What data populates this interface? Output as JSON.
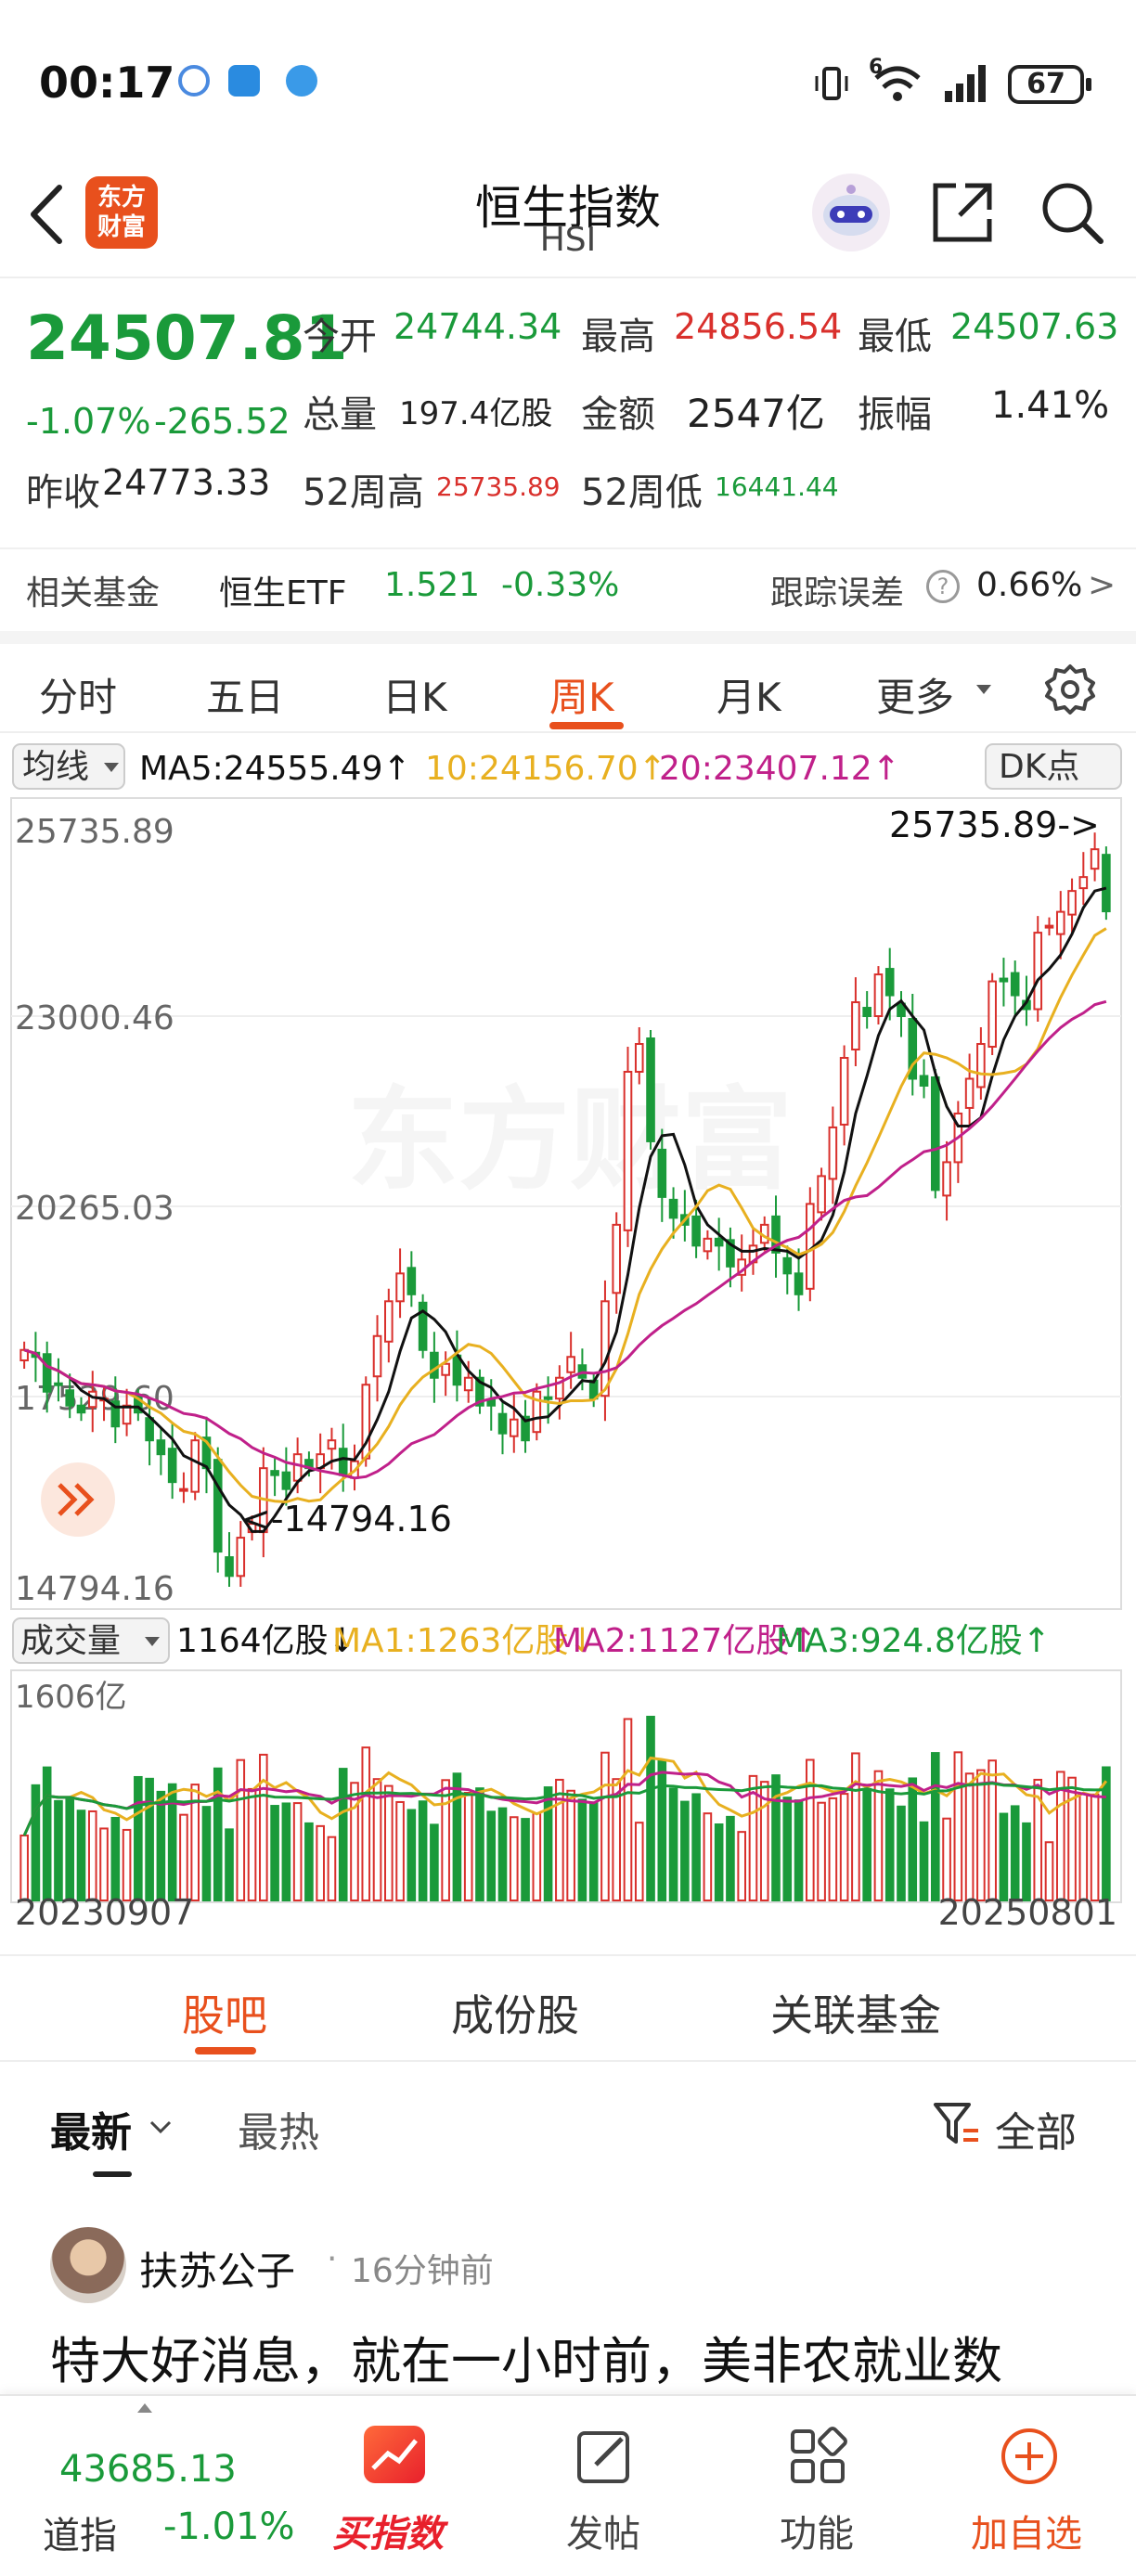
{
  "status_bar": {
    "time": "00:17",
    "battery": "67",
    "network": "6"
  },
  "header": {
    "title": "恒生指数",
    "subtitle": "HSI",
    "logo_line1": "东方",
    "logo_line2": "财富",
    "icons": [
      "back-icon",
      "assistant-icon",
      "share-icon",
      "search-icon"
    ]
  },
  "quote": {
    "price": "24507.81",
    "change_pct": "-1.07%",
    "change": "-265.52",
    "open_label": "今开",
    "open": "24744.34",
    "high_label": "最高",
    "high": "24856.54",
    "low_label": "最低",
    "low": "24507.63",
    "volume_label": "总量",
    "volume": "197.4亿股",
    "amount_label": "金额",
    "amount": "2547亿",
    "amplitude_label": "振幅",
    "amplitude": "1.41%",
    "prev_close_label": "昨收",
    "prev_close": "24773.33",
    "wk52_high_label": "52周高",
    "wk52_high": "25735.89",
    "wk52_low_label": "52周低",
    "wk52_low": "16441.44"
  },
  "fund": {
    "label": "相关基金",
    "name": "恒生ETF",
    "price": "1.521",
    "change": "-0.33%",
    "tracking_label": "跟踪误差",
    "tracking": "0.66%",
    "chevron": ">"
  },
  "tabs": [
    "分时",
    "五日",
    "日K",
    "周K",
    "月K",
    "更多"
  ],
  "active_tab": 3,
  "chart_header": {
    "selector": "均线",
    "ma5": "MA5:24555.49↑",
    "ma10": "10:24156.70↑",
    "ma20": "20:23407.12↑",
    "dk": "DK点"
  },
  "volume_header": {
    "selector": "成交量",
    "vol": "1164亿股↓",
    "ma1": "MA1:1263亿股↓",
    "ma2": "MA2:1127亿股↑",
    "ma3": "MA3:924.8亿股↑",
    "max_label": "1606亿"
  },
  "colors": {
    "up": "#d9302c",
    "down": "#1a9a3a",
    "ma5": "#111111",
    "ma10": "#e8b020",
    "ma20": "#c0208a",
    "accent": "#e8501d"
  },
  "chart_data": {
    "type": "candlestick",
    "period": "weekly",
    "x_start": "20230907",
    "x_end": "20250801",
    "y_ticks": [
      "25735.89",
      "23000.46",
      "20265.03",
      "17529.60",
      "14794.16"
    ],
    "ylim": [
      14794.16,
      25735.89
    ],
    "max_annotation": "25735.89->",
    "min_annotation": "<-14794.16",
    "closes": [
      18200,
      18100,
      17600,
      17700,
      17400,
      17300,
      17600,
      17500,
      17100,
      17400,
      17300,
      16900,
      16700,
      16300,
      16200,
      16900,
      16500,
      15300,
      14950,
      15500,
      15700,
      16500,
      16400,
      16200,
      16700,
      16500,
      16700,
      16900,
      16400,
      16600,
      17700,
      18400,
      18900,
      19300,
      19000,
      18200,
      17800,
      18000,
      17700,
      17800,
      17400,
      17400,
      17000,
      17200,
      16900,
      17600,
      17500,
      17800,
      18100,
      17800,
      17500,
      18900,
      20000,
      22200,
      22600,
      21200,
      20400,
      20100,
      20000,
      19700,
      19800,
      19700,
      19400,
      19500,
      19700,
      20000,
      19600,
      19300,
      19000,
      20300,
      20700,
      21400,
      22400,
      23200,
      23000,
      23600,
      23300,
      23000,
      22100,
      22000,
      20500,
      20900,
      21600,
      22100,
      22600,
      23500,
      23500,
      23300,
      23100,
      24200,
      24300,
      24500,
      24800,
      25000,
      25400,
      24507
    ],
    "ma5_end": 24555.49,
    "ma10_end": 24156.7,
    "ma20_end": 23407.12,
    "volume_max": 1606,
    "volume_last": 1164,
    "volume_ma1_end": 1263,
    "volume_ma2_end": 1127,
    "volume_ma3_end": 924.8
  },
  "watermark": "东方财富",
  "bar_tabs": [
    "股吧",
    "成份股",
    "关联基金"
  ],
  "filter": {
    "latest": "最新",
    "hot": "最热",
    "all": "全部"
  },
  "post": {
    "author": "扶苏公子",
    "time": "16分钟前",
    "text": "特大好消息，就在一小时前，美非农就业数"
  },
  "bottom_nav": {
    "index_value": "43685.13",
    "index_name": "道指",
    "index_change": "-1.01%",
    "buy": "买指数",
    "post": "发帖",
    "func": "功能",
    "add": "加自选"
  }
}
